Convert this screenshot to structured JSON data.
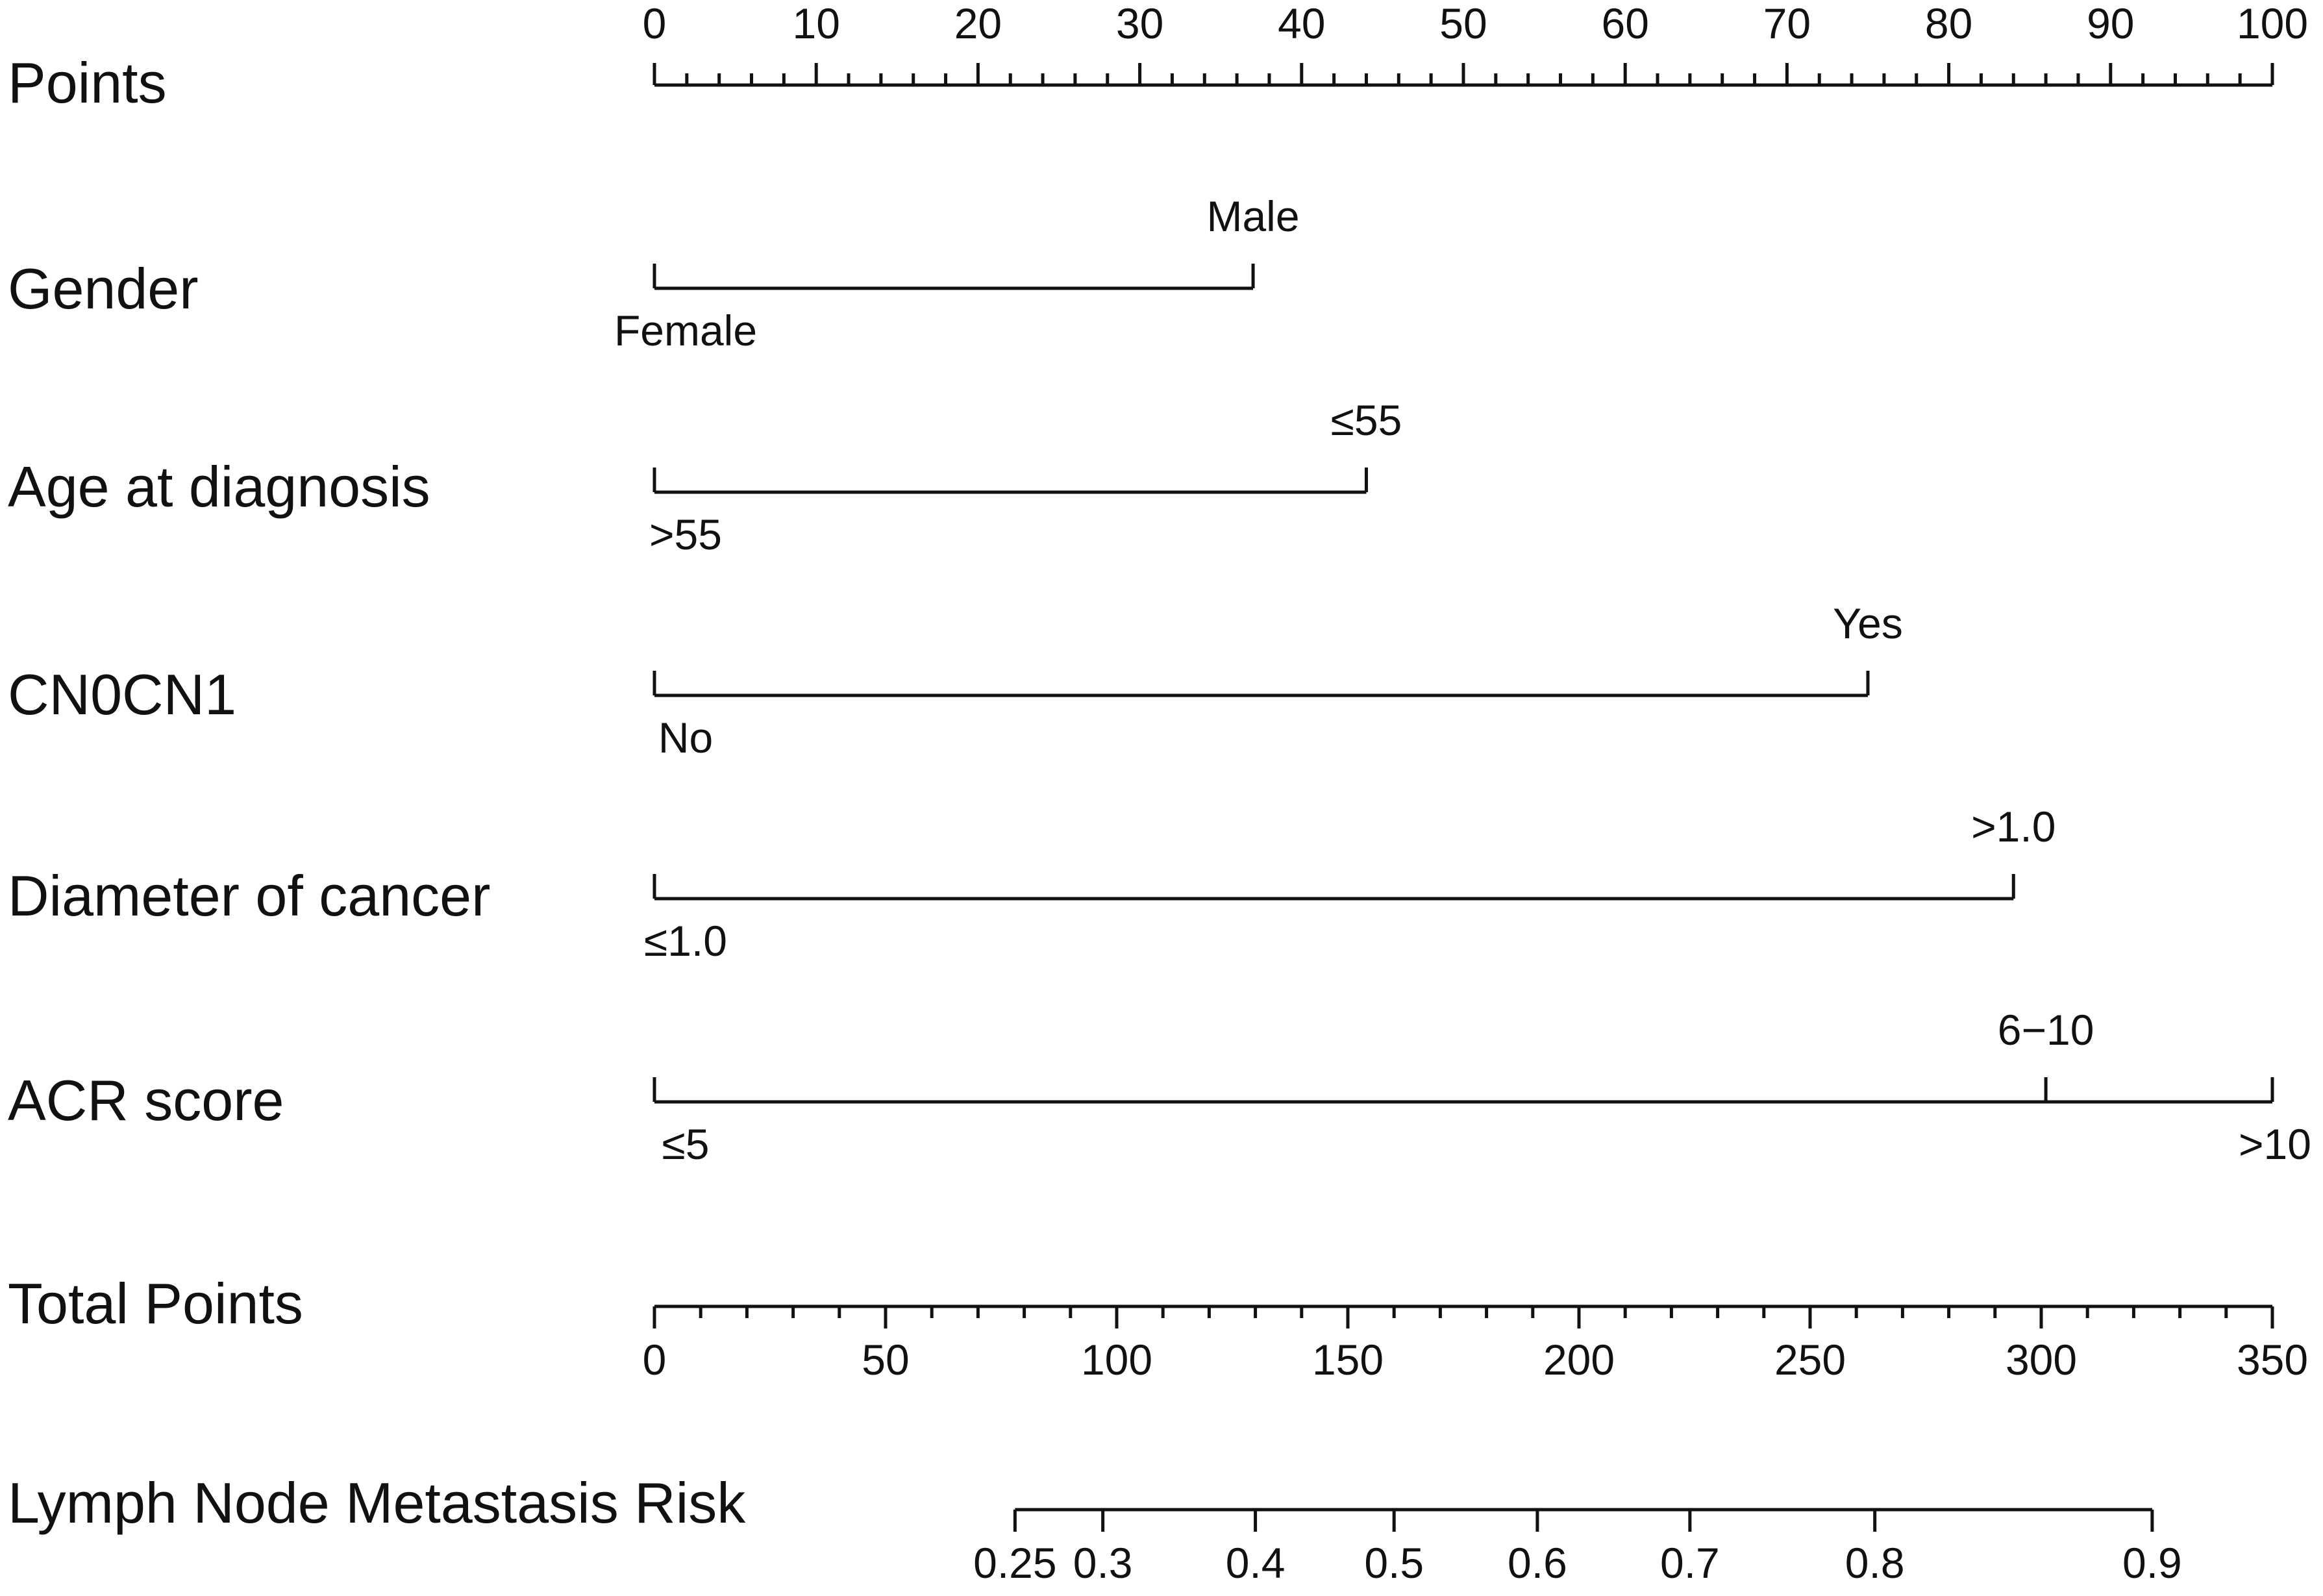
{
  "chart_data": {
    "type": "nomogram",
    "rows": [
      {
        "id": "points",
        "label": "Points",
        "kind": "axis",
        "range": [
          0,
          100
        ],
        "major_ticks": [
          0,
          10,
          20,
          30,
          40,
          50,
          60,
          70,
          80,
          90,
          100
        ],
        "tick_labels": [
          "0",
          "10",
          "20",
          "30",
          "40",
          "50",
          "60",
          "70",
          "80",
          "90",
          "100"
        ],
        "minor_ticks_per_interval": 5,
        "label_side": "above"
      },
      {
        "id": "gender",
        "label": "Gender",
        "kind": "variable",
        "range": [
          0,
          37
        ],
        "levels": [
          {
            "label": "Female",
            "points": 0,
            "side": "below"
          },
          {
            "label": "Male",
            "points": 37,
            "side": "above"
          }
        ]
      },
      {
        "id": "age",
        "label": "Age at diagnosis",
        "kind": "variable",
        "range": [
          0,
          44
        ],
        "levels": [
          {
            "label": ">55",
            "points": 0,
            "side": "below"
          },
          {
            "label": "≤55",
            "points": 44,
            "side": "above"
          }
        ]
      },
      {
        "id": "cn0cn1",
        "label": "CN0CN1",
        "kind": "variable",
        "range": [
          0,
          75
        ],
        "levels": [
          {
            "label": "No",
            "points": 0,
            "side": "below"
          },
          {
            "label": "Yes",
            "points": 75,
            "side": "above"
          }
        ]
      },
      {
        "id": "diameter",
        "label": "Diameter of cancer",
        "kind": "variable",
        "range": [
          0,
          84
        ],
        "levels": [
          {
            "label": "≤1.0",
            "points": 0,
            "side": "below"
          },
          {
            "label": ">1.0",
            "points": 84,
            "side": "above"
          }
        ]
      },
      {
        "id": "acr",
        "label": "ACR score",
        "kind": "variable",
        "range": [
          0,
          100
        ],
        "levels": [
          {
            "label": "≤5",
            "points": 0,
            "side": "below"
          },
          {
            "label": "6−10",
            "points": 86,
            "side": "above"
          },
          {
            "label": ">10",
            "points": 100,
            "side": "below"
          }
        ]
      },
      {
        "id": "total",
        "label": "Total Points",
        "kind": "axis",
        "range": [
          0,
          350
        ],
        "major_ticks": [
          0,
          50,
          100,
          150,
          200,
          250,
          300,
          350
        ],
        "tick_labels": [
          "0",
          "50",
          "100",
          "150",
          "200",
          "250",
          "300",
          "350"
        ],
        "minor_ticks_per_interval": 5,
        "label_side": "below"
      },
      {
        "id": "risk",
        "label": "Lymph Node Metastasis Risk",
        "kind": "risk",
        "total_points_at_ticks": [
          78,
          97,
          130,
          160,
          191,
          224,
          264,
          324
        ],
        "tick_labels": [
          "0.25",
          "0.3",
          "0.4",
          "0.5",
          "0.6",
          "0.7",
          "0.8",
          "0.9"
        ],
        "label_side": "below"
      }
    ]
  }
}
